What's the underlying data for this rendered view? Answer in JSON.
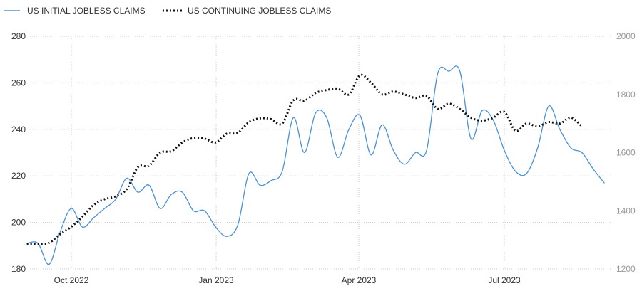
{
  "colors": {
    "initial": "#4a90d9",
    "continuing": "#111111",
    "grid": "#c8c8c8"
  },
  "chart_data": {
    "type": "line",
    "legend_position": "top-left",
    "grid": true,
    "x_ticks": [
      "Oct 2022",
      "Jan 2023",
      "Apr 2023",
      "Jul 2023"
    ],
    "y_left": {
      "lim": [
        180,
        280
      ],
      "ticks": [
        180,
        200,
        220,
        240,
        260,
        280
      ]
    },
    "y_right": {
      "lim": [
        1200,
        2000
      ],
      "ticks": [
        1200,
        1400,
        1600,
        1800,
        2000
      ]
    },
    "series": [
      {
        "name": "US INITIAL JOBLESS CLAIMS",
        "axis": "left",
        "style": "solid",
        "x": [
          "2022-09-03",
          "2022-09-10",
          "2022-09-17",
          "2022-09-24",
          "2022-10-01",
          "2022-10-08",
          "2022-10-15",
          "2022-10-22",
          "2022-10-29",
          "2022-11-05",
          "2022-11-12",
          "2022-11-19",
          "2022-11-26",
          "2022-12-03",
          "2022-12-10",
          "2022-12-17",
          "2022-12-24",
          "2022-12-31",
          "2023-01-07",
          "2023-01-14",
          "2023-01-21",
          "2023-01-28",
          "2023-02-04",
          "2023-02-11",
          "2023-02-18",
          "2023-02-25",
          "2023-03-04",
          "2023-03-11",
          "2023-03-18",
          "2023-03-25",
          "2023-04-01",
          "2023-04-08",
          "2023-04-15",
          "2023-04-22",
          "2023-04-29",
          "2023-05-06",
          "2023-05-13",
          "2023-05-20",
          "2023-05-27",
          "2023-06-03",
          "2023-06-10",
          "2023-06-17",
          "2023-06-24",
          "2023-07-01",
          "2023-07-08",
          "2023-07-15",
          "2023-07-22",
          "2023-07-29",
          "2023-08-05",
          "2023-08-12",
          "2023-08-19",
          "2023-08-26",
          "2023-09-02"
        ],
        "values": [
          191,
          191,
          182,
          196,
          206,
          198,
          202,
          206,
          210,
          219,
          213,
          216,
          206,
          212,
          213,
          205,
          205,
          198,
          194,
          199,
          221,
          216,
          218,
          222,
          245,
          230,
          247,
          245,
          228,
          240,
          246,
          229,
          242,
          231,
          225,
          230,
          231,
          264,
          265,
          265,
          236,
          248,
          244,
          231,
          222,
          221,
          232,
          250,
          240,
          232,
          230,
          223,
          217
        ]
      },
      {
        "name": "US CONTINUING JOBLESS CLAIMS",
        "axis": "right",
        "style": "dotted",
        "x": [
          "2022-09-03",
          "2022-09-10",
          "2022-09-17",
          "2022-09-24",
          "2022-10-01",
          "2022-10-08",
          "2022-10-15",
          "2022-10-22",
          "2022-10-29",
          "2022-11-05",
          "2022-11-12",
          "2022-11-19",
          "2022-11-26",
          "2022-12-03",
          "2022-12-10",
          "2022-12-17",
          "2022-12-24",
          "2022-12-31",
          "2023-01-07",
          "2023-01-14",
          "2023-01-21",
          "2023-01-28",
          "2023-02-04",
          "2023-02-11",
          "2023-02-18",
          "2023-02-25",
          "2023-03-04",
          "2023-03-11",
          "2023-03-18",
          "2023-03-25",
          "2023-04-01",
          "2023-04-08",
          "2023-04-15",
          "2023-04-22",
          "2023-04-29",
          "2023-05-06",
          "2023-05-13",
          "2023-05-20",
          "2023-05-27",
          "2023-06-03",
          "2023-06-10",
          "2023-06-17",
          "2023-06-24",
          "2023-07-01",
          "2023-07-08",
          "2023-07-15",
          "2023-07-22",
          "2023-07-29",
          "2023-08-05",
          "2023-08-12",
          "2023-08-19"
        ],
        "values": [
          1285,
          1285,
          1290,
          1320,
          1345,
          1380,
          1420,
          1440,
          1450,
          1475,
          1550,
          1555,
          1600,
          1605,
          1635,
          1650,
          1648,
          1635,
          1665,
          1668,
          1705,
          1718,
          1715,
          1700,
          1780,
          1778,
          1805,
          1815,
          1820,
          1800,
          1866,
          1840,
          1800,
          1810,
          1800,
          1788,
          1795,
          1750,
          1768,
          1750,
          1720,
          1710,
          1720,
          1740,
          1675,
          1700,
          1690,
          1705,
          1700,
          1720,
          1690
        ]
      }
    ]
  }
}
